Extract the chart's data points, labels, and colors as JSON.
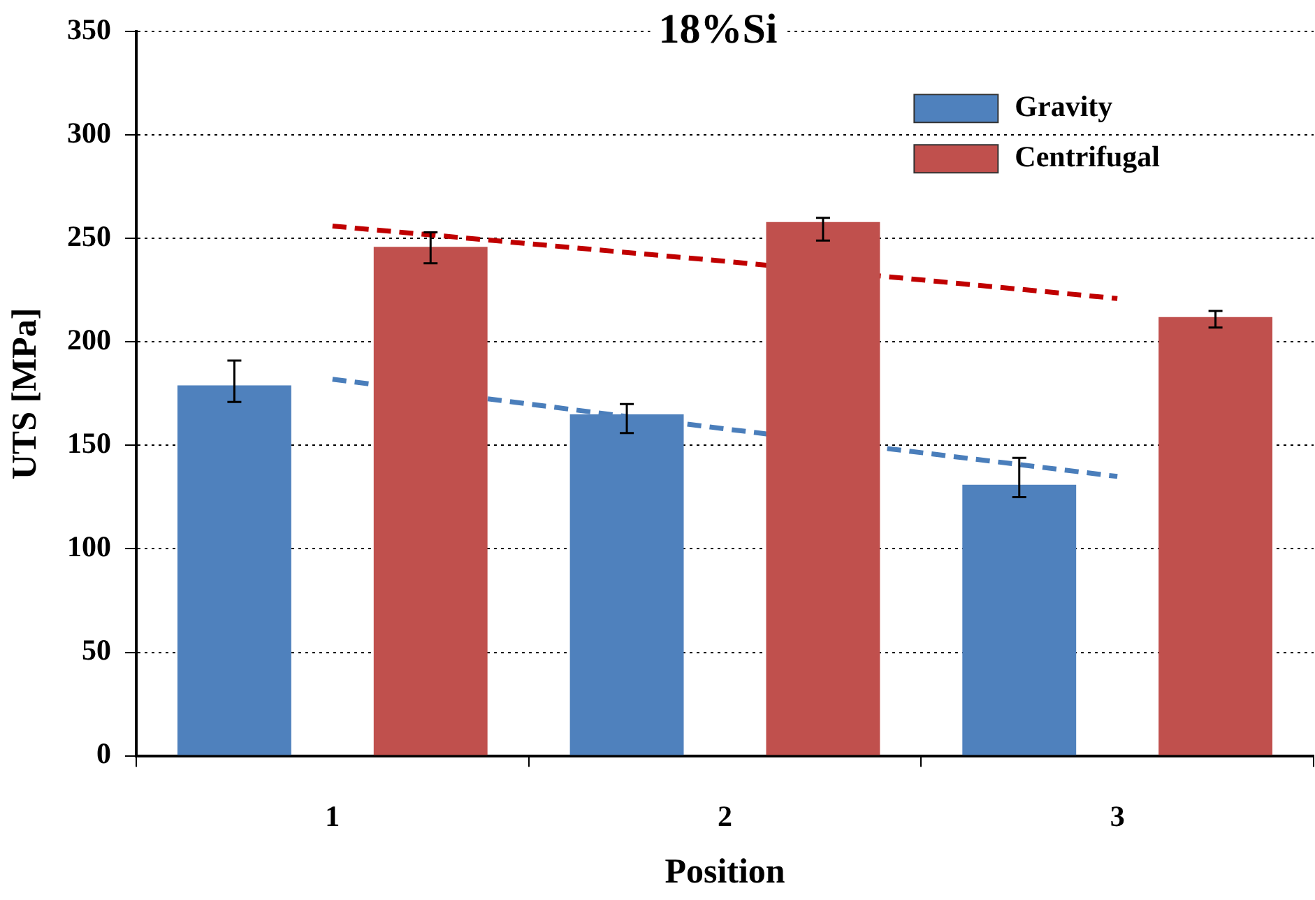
{
  "chart_data": {
    "type": "bar",
    "title": "18%Si",
    "xlabel": "Position",
    "ylabel": "UTS [MPa]",
    "categories": [
      "1",
      "2",
      "3"
    ],
    "series": [
      {
        "name": "Gravity",
        "color": "#4f81bd",
        "values": [
          179,
          165,
          131
        ],
        "errors": [
          [
            171,
            191
          ],
          [
            156,
            170
          ],
          [
            125,
            144
          ]
        ]
      },
      {
        "name": "Centrifugal",
        "color": "#c0504d",
        "values": [
          246,
          258,
          212
        ],
        "errors": [
          [
            238,
            253
          ],
          [
            249,
            260
          ],
          [
            207,
            215
          ]
        ]
      },
      {
        "type": "line",
        "color": "#c00000",
        "x": [
          "1",
          "2",
          "3"
        ],
        "values": [
          256,
          239,
          221
        ],
        "line_style": "dashed",
        "marker": "none"
      },
      {
        "type": "line",
        "color": "#4a7ebb",
        "x": [
          "1",
          "2",
          "3"
        ],
        "values": [
          182,
          158,
          135
        ],
        "line_style": "dashed",
        "marker": "none"
      }
    ],
    "ylim": [
      0,
      350
    ],
    "yticks": [
      0,
      50,
      100,
      150,
      200,
      250,
      300,
      350
    ],
    "grid": "y",
    "legend": "top right"
  }
}
